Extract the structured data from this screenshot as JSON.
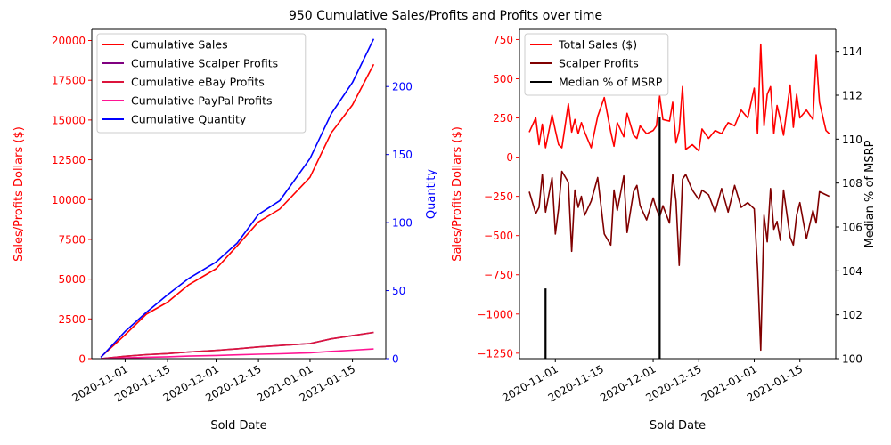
{
  "figure": {
    "title": "950 Cumulative Sales/Profits and Profits over time"
  },
  "chart_data": [
    {
      "type": "line",
      "xlabel": "Sold Date",
      "ylabel": "Sales/Profits Dollars ($)",
      "y2label": "Quantity",
      "xlim": [
        "2020-10-21",
        "2021-01-26"
      ],
      "ylim": [
        0,
        20700
      ],
      "y2lim": [
        0,
        242
      ],
      "x_ticks": [
        "2020-11-01",
        "2020-11-15",
        "2020-12-01",
        "2020-12-15",
        "2021-01-01",
        "2021-01-15"
      ],
      "y_ticks": [
        "0",
        "2500",
        "5000",
        "7500",
        "10000",
        "12500",
        "15000",
        "17500",
        "20000"
      ],
      "y2_ticks": [
        "0",
        "50",
        "100",
        "150",
        "200"
      ],
      "legend_position": "upper-left",
      "grid": false,
      "x": [
        "2020-10-24",
        "2020-11-01",
        "2020-11-08",
        "2020-11-15",
        "2020-11-22",
        "2020-12-01",
        "2020-12-08",
        "2020-12-15",
        "2020-12-22",
        "2021-01-01",
        "2021-01-08",
        "2021-01-15",
        "2021-01-22"
      ],
      "series": [
        {
          "name": "Cumulative Sales",
          "axis": "left",
          "color": "#ff0000",
          "values": [
            100,
            1500,
            2800,
            3550,
            4650,
            5650,
            7100,
            8600,
            9400,
            11400,
            14200,
            15950,
            18500
          ]
        },
        {
          "name": "Cumulative Scalper Profits",
          "axis": "left",
          "color": "#800080",
          "values": [
            0,
            150,
            250,
            320,
            420,
            520,
            620,
            740,
            830,
            950,
            1250,
            1450,
            1650
          ]
        },
        {
          "name": "Cumulative eBay Profits",
          "axis": "left",
          "color": "#dc143c",
          "values": [
            0,
            150,
            250,
            320,
            420,
            520,
            620,
            740,
            830,
            950,
            1250,
            1450,
            1650
          ]
        },
        {
          "name": "Cumulative PayPal Profits",
          "axis": "left",
          "color": "#ff1493",
          "values": [
            0,
            50,
            90,
            120,
            160,
            200,
            240,
            280,
            310,
            370,
            460,
            530,
            610
          ]
        },
        {
          "name": "Cumulative Quantity",
          "axis": "right",
          "color": "#0000ff",
          "values": [
            1,
            20,
            34,
            47,
            59,
            71,
            85,
            106,
            116,
            147,
            180,
            203,
            235
          ]
        }
      ]
    },
    {
      "type": "line",
      "xlabel": "Sold Date",
      "ylabel": "Sales/Profits Dollars ($)",
      "y2label": "Median % of MSRP",
      "xlim": [
        "2020-10-21",
        "2021-01-26"
      ],
      "ylim": [
        -1285,
        815
      ],
      "y2lim": [
        100,
        115
      ],
      "x_ticks": [
        "2020-11-01",
        "2020-11-15",
        "2020-12-01",
        "2020-12-15",
        "2021-01-01",
        "2021-01-15"
      ],
      "y_ticks": [
        "−1250",
        "−1000",
        "−750",
        "−500",
        "−250",
        "0",
        "250",
        "500",
        "750"
      ],
      "y2_ticks": [
        "100",
        "102",
        "104",
        "106",
        "108",
        "110",
        "112",
        "114"
      ],
      "legend_position": "upper-left",
      "grid": false,
      "x": [
        "2020-10-24",
        "2020-10-26",
        "2020-10-27",
        "2020-10-28",
        "2020-10-29",
        "2020-10-31",
        "2020-11-01",
        "2020-11-02",
        "2020-11-03",
        "2020-11-05",
        "2020-11-06",
        "2020-11-07",
        "2020-11-08",
        "2020-11-09",
        "2020-11-10",
        "2020-11-12",
        "2020-11-14",
        "2020-11-16",
        "2020-11-18",
        "2020-11-19",
        "2020-11-20",
        "2020-11-22",
        "2020-11-23",
        "2020-11-25",
        "2020-11-26",
        "2020-11-27",
        "2020-11-29",
        "2020-12-01",
        "2020-12-02",
        "2020-12-03",
        "2020-12-04",
        "2020-12-06",
        "2020-12-07",
        "2020-12-08",
        "2020-12-09",
        "2020-12-10",
        "2020-12-11",
        "2020-12-13",
        "2020-12-15",
        "2020-12-16",
        "2020-12-18",
        "2020-12-20",
        "2020-12-22",
        "2020-12-24",
        "2020-12-26",
        "2020-12-28",
        "2020-12-30",
        "2021-01-01",
        "2021-01-02",
        "2021-01-03",
        "2021-01-04",
        "2021-01-05",
        "2021-01-06",
        "2021-01-07",
        "2021-01-08",
        "2021-01-09",
        "2021-01-10",
        "2021-01-12",
        "2021-01-13",
        "2021-01-14",
        "2021-01-15",
        "2021-01-17",
        "2021-01-19",
        "2021-01-20",
        "2021-01-21",
        "2021-01-23",
        "2021-01-24"
      ],
      "series": [
        {
          "name": "Total Sales ($)",
          "axis": "left",
          "color": "#ff0000",
          "values": [
            160,
            250,
            80,
            210,
            60,
            270,
            170,
            80,
            60,
            340,
            160,
            240,
            150,
            220,
            160,
            60,
            260,
            380,
            160,
            70,
            220,
            130,
            280,
            140,
            120,
            200,
            150,
            170,
            200,
            390,
            240,
            230,
            350,
            90,
            170,
            450,
            50,
            80,
            40,
            180,
            120,
            170,
            150,
            220,
            200,
            300,
            250,
            440,
            150,
            720,
            200,
            400,
            450,
            150,
            330,
            240,
            140,
            460,
            190,
            400,
            250,
            300,
            240,
            650,
            350,
            170,
            150
          ]
        },
        {
          "name": "Scalper Profits",
          "axis": "left",
          "color": "#800000",
          "values": [
            -220,
            -360,
            -320,
            -110,
            -350,
            -130,
            -490,
            -330,
            -90,
            -160,
            -600,
            -210,
            -320,
            -250,
            -370,
            -280,
            -130,
            -490,
            -560,
            -210,
            -340,
            -120,
            -480,
            -220,
            -180,
            -310,
            -400,
            -260,
            -330,
            -380,
            -310,
            -420,
            -110,
            -280,
            -690,
            -140,
            -110,
            -210,
            -270,
            -210,
            -240,
            -350,
            -200,
            -350,
            -180,
            -320,
            -290,
            -330,
            -710,
            -1230,
            -370,
            -540,
            -200,
            -460,
            -410,
            -530,
            -210,
            -510,
            -560,
            -370,
            -290,
            -520,
            -340,
            -420,
            -220,
            -240,
            -250
          ]
        },
        {
          "name": "Median % of MSRP",
          "axis": "right",
          "color": "#000000",
          "style": "bars",
          "values": [
            0,
            0,
            0,
            0,
            103.2,
            0,
            0,
            0,
            0,
            0,
            0,
            0,
            0,
            0,
            0,
            0,
            0,
            0,
            0,
            0,
            0,
            0,
            0,
            0,
            0,
            0,
            0,
            0,
            0,
            111,
            0,
            0,
            0,
            0,
            0,
            0,
            0,
            0,
            0,
            0,
            0,
            0,
            0,
            0,
            0,
            0,
            0,
            0,
            0,
            0,
            0,
            0,
            0,
            0,
            0,
            0,
            0,
            0,
            0,
            0,
            0,
            0,
            0,
            0,
            0,
            0,
            0
          ]
        }
      ]
    }
  ]
}
